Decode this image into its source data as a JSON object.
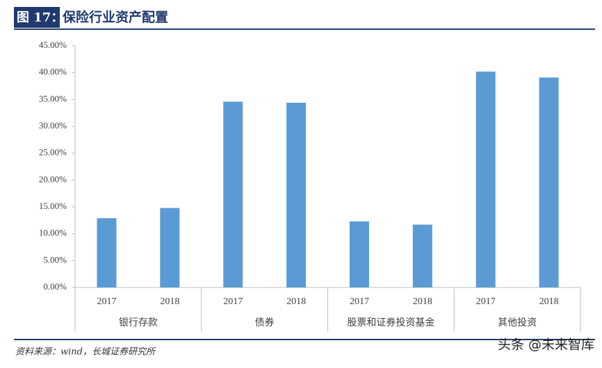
{
  "chart_data": {
    "type": "bar",
    "figure_label": "图 17：",
    "title": "保险行业资产配置",
    "categories": [
      "2017",
      "2018",
      "2017",
      "2018",
      "2017",
      "2018",
      "2017",
      "2018"
    ],
    "groups": [
      "银行存款",
      "债券",
      "股票和证券投资基金",
      "其他投资"
    ],
    "values": [
      12.9,
      14.8,
      34.6,
      34.4,
      12.3,
      11.7,
      40.2,
      39.1
    ],
    "color": "#5b9bd5",
    "ylim": [
      0,
      45
    ],
    "yticks": [
      {
        "value": 0,
        "label": "0.00%"
      },
      {
        "value": 5,
        "label": "5.00%"
      },
      {
        "value": 10,
        "label": "10.00%"
      },
      {
        "value": 15,
        "label": "15.00%"
      },
      {
        "value": 20,
        "label": "20.00%"
      },
      {
        "value": 25,
        "label": "25.00%"
      },
      {
        "value": 30,
        "label": "30.00%"
      },
      {
        "value": 35,
        "label": "35.00%"
      },
      {
        "value": 40,
        "label": "40.00%"
      },
      {
        "value": 45,
        "label": "45.00%"
      }
    ],
    "grid": false,
    "source": "资料来源：wind，长城证券研究所",
    "watermark": "头条 @未来智库"
  }
}
